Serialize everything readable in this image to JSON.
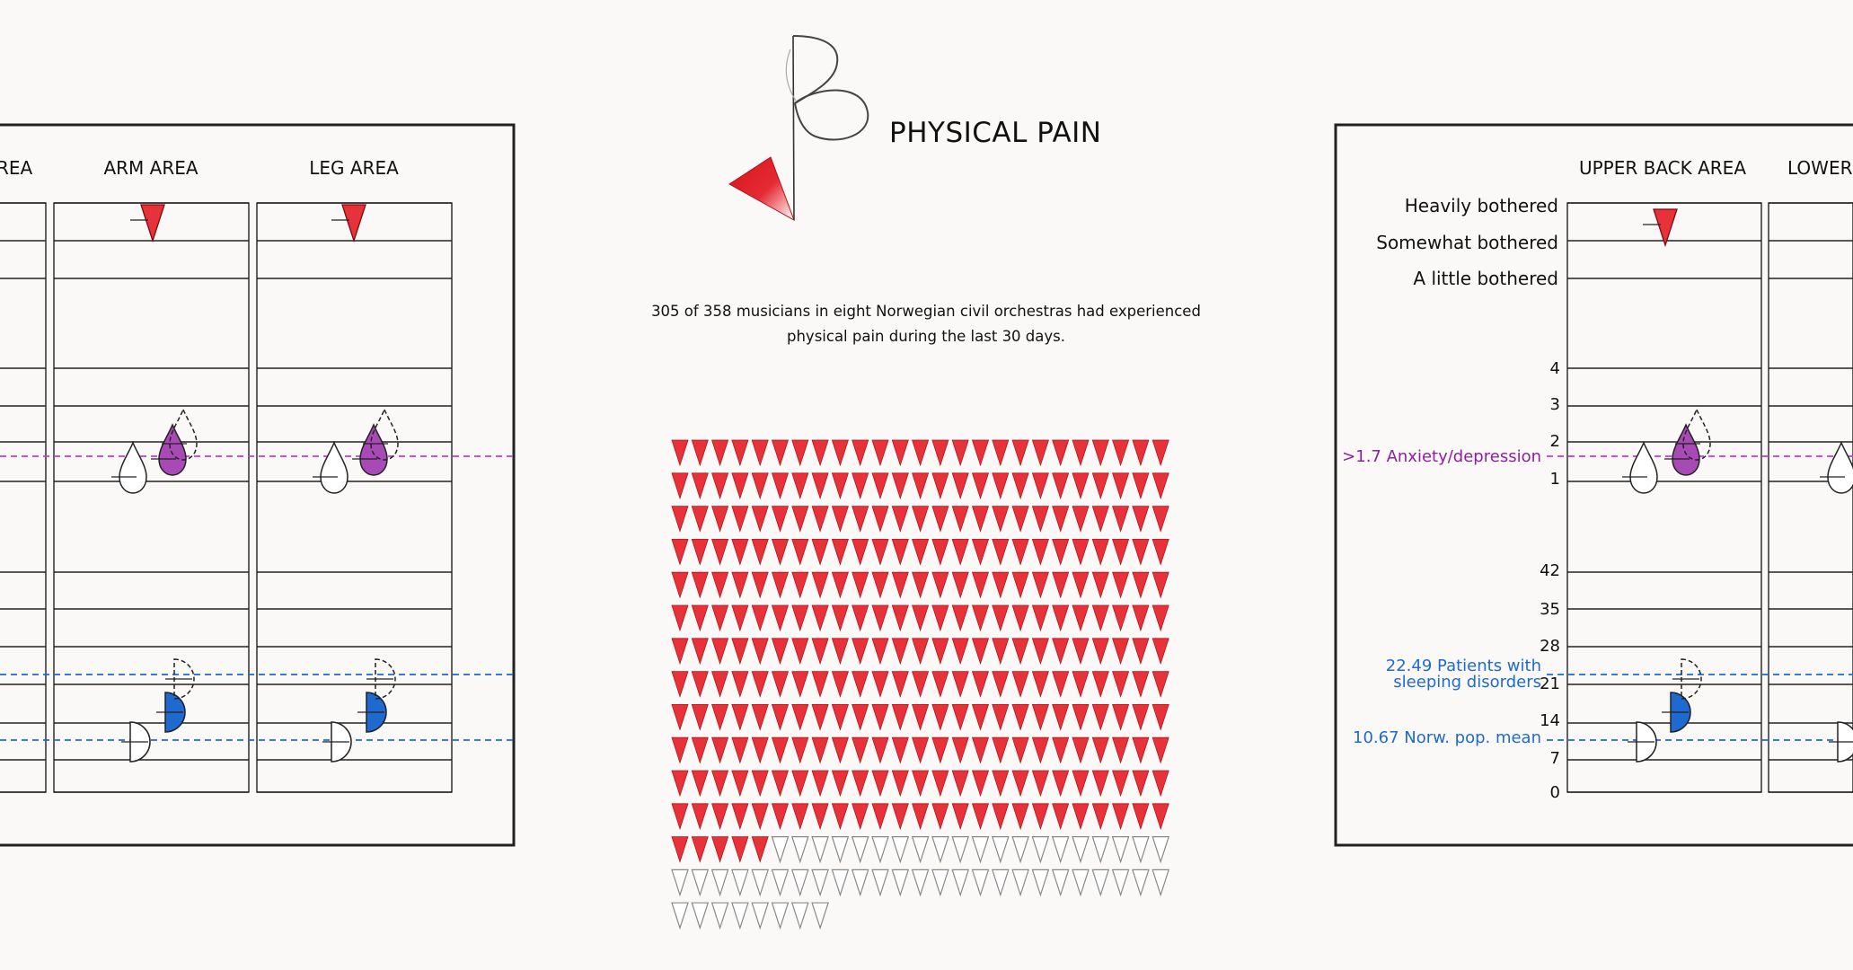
{
  "title": "PHYSICAL PAIN",
  "intro": {
    "line1": "305 of 358 musicians in eight Norwegian civil orchestras had experienced",
    "line2": "physical pain during the last 30 days."
  },
  "pain_counts": {
    "experienced": 305,
    "total": 358
  },
  "left_panel": {
    "partial_header": "REA",
    "columns": [
      "ARM AREA",
      "LEG AREA"
    ]
  },
  "right_panel": {
    "columns": [
      "UPPER BACK AREA",
      "LOWER B"
    ],
    "severity_levels": [
      "Heavily bothered",
      "Somewhat bothered",
      "A little bothered"
    ],
    "anxiety_ticks": [
      "4",
      "3",
      "2",
      "1"
    ],
    "sleep_ticks": [
      "42",
      "35",
      "28",
      "21",
      "14",
      "7",
      "0"
    ],
    "reference_lines": {
      "anxiety": ">1.7 Anxiety/depression",
      "sleep_patients_line1": "22.49 Patients with",
      "sleep_patients_line2": "sleeping disorders",
      "norw_mean": "10.67 Norw. pop. mean"
    }
  },
  "colors": {
    "pain_red": "#e8323a",
    "anxiety_purple": "#a84ab5",
    "anxiety_ref": "#c43ecf",
    "sleep_blue": "#1e6ad0",
    "background": "#fbf9f8"
  },
  "icons": [
    "flower-logo-icon",
    "pain-triangle-icon",
    "anxiety-drop-icon",
    "sleep-halfcircle-icon"
  ]
}
